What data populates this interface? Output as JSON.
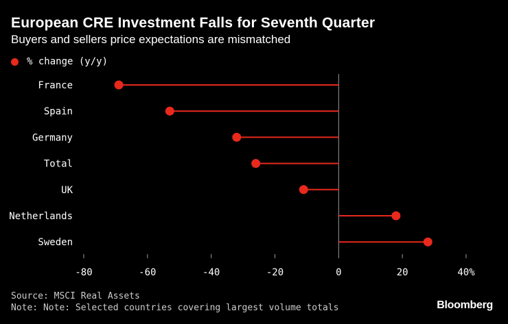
{
  "chart_data": {
    "type": "lollipop",
    "title": "European CRE Investment Falls for Seventh Quarter",
    "subtitle": "Buyers and sellers price expectations are mismatched",
    "legend": [
      {
        "label": "% change (y/y)",
        "color": "#e8291c"
      }
    ],
    "series": [
      {
        "name": "% change (y/y)",
        "values": [
          -69,
          -53,
          -32,
          -26,
          -11,
          18,
          28
        ]
      }
    ],
    "categories": [
      "France",
      "Spain",
      "Germany",
      "Total",
      "UK",
      "Netherlands",
      "Sweden"
    ],
    "xlim": [
      -80,
      40
    ],
    "xticks": [
      -80,
      -60,
      -40,
      -20,
      0,
      20,
      40
    ],
    "xtick_labels": [
      "-80",
      "-60",
      "-40",
      "-20",
      "0",
      "20",
      "40%"
    ],
    "xlabel": "",
    "ylabel": ""
  },
  "footer": {
    "source": "Source: MSCI Real Assets",
    "note": "Note: Note: Selected countries covering largest volume totals",
    "brand": "Bloomberg"
  },
  "colors": {
    "series": "#e8291c",
    "axis": "#9a9a9a",
    "background": "#000000"
  }
}
